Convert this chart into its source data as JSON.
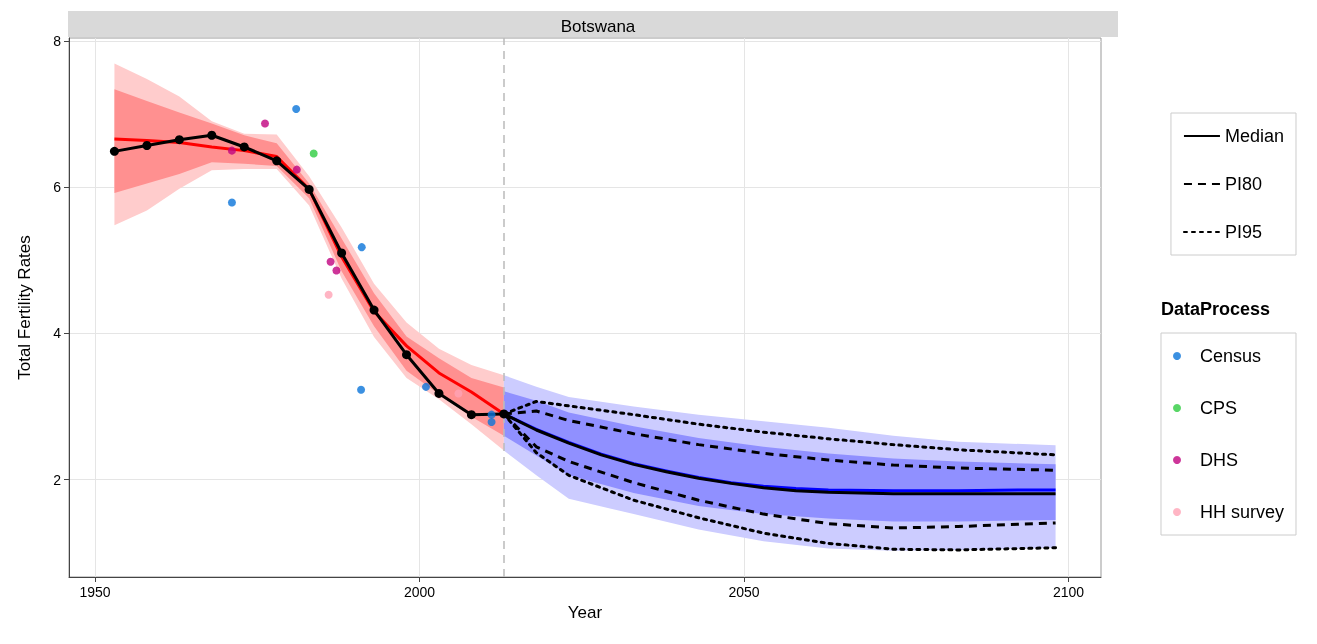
{
  "chart_data": {
    "type": "line",
    "title": "Botswana",
    "xlabel": "Year",
    "ylabel": "Total Fertility Rates",
    "legend_title": "DataProcess",
    "xlim": [
      1946,
      2105
    ],
    "xticks": [
      1950,
      2000,
      2050,
      2100
    ],
    "ylim": [
      0.67,
      8.04
    ],
    "yticks": [
      2,
      4,
      6,
      8
    ],
    "grid": true,
    "legend": "right",
    "marker": "none",
    "line_style": "solid",
    "ref_lines": [
      {
        "axis": "x",
        "value": 2013,
        "color": "#bbbbbb",
        "line_style": "dashed"
      }
    ],
    "series": [
      {
        "color": "#ffcccc",
        "x": [
          1953,
          1958,
          1963,
          1968,
          1973,
          1978,
          1983,
          1988,
          1993,
          1998,
          2003,
          2008,
          2013
        ],
        "values": [
          null,
          null,
          null,
          null,
          null,
          null,
          null,
          null,
          null,
          null,
          null,
          null,
          null
        ],
        "lower": [
          5.48,
          5.68,
          5.98,
          6.23,
          6.25,
          6.25,
          5.75,
          4.75,
          3.95,
          3.39,
          3.1,
          2.76,
          2.4
        ],
        "upper": [
          7.69,
          7.48,
          7.24,
          6.9,
          6.73,
          6.72,
          6.15,
          5.45,
          4.68,
          4.15,
          3.79,
          3.57,
          3.43
        ]
      },
      {
        "color": "#ff9090",
        "x": [
          1953,
          1958,
          1963,
          1968,
          1973,
          1978,
          1983,
          1988,
          1993,
          1998,
          2003,
          2008,
          2013
        ],
        "values": [
          null,
          null,
          null,
          null,
          null,
          null,
          null,
          null,
          null,
          null,
          null,
          null,
          null
        ],
        "lower": [
          5.92,
          6.05,
          6.18,
          6.34,
          6.32,
          6.29,
          5.85,
          4.85,
          4.1,
          3.49,
          3.17,
          2.86,
          2.6
        ],
        "upper": [
          7.34,
          7.18,
          7.02,
          6.87,
          6.71,
          6.6,
          6.05,
          5.3,
          4.55,
          3.96,
          3.66,
          3.39,
          3.26
        ]
      },
      {
        "color": "#ccccff",
        "x": [
          2013,
          2018,
          2023,
          2033,
          2043,
          2053,
          2063,
          2073,
          2083,
          2098
        ],
        "values": [
          null,
          null,
          null,
          null,
          null,
          null,
          null,
          null,
          null,
          null
        ],
        "lower": [
          2.4,
          2.06,
          1.74,
          1.53,
          1.32,
          1.16,
          1.06,
          1.03,
          1.04,
          1.07
        ],
        "upper": [
          3.43,
          3.27,
          3.13,
          3.0,
          2.89,
          2.8,
          2.71,
          2.6,
          2.52,
          2.47
        ]
      },
      {
        "color": "#9090ff",
        "x": [
          2013,
          2018,
          2023,
          2033,
          2043,
          2053,
          2063,
          2073,
          2083,
          2098
        ],
        "values": [
          null,
          null,
          null,
          null,
          null,
          null,
          null,
          null,
          null,
          null
        ],
        "lower": [
          2.6,
          2.33,
          2.06,
          1.82,
          1.64,
          1.53,
          1.47,
          1.43,
          1.43,
          1.45
        ],
        "upper": [
          3.21,
          3.08,
          2.92,
          2.73,
          2.57,
          2.45,
          2.36,
          2.29,
          2.25,
          2.21
        ]
      },
      {
        "color": "#ff0000",
        "x": [
          1953,
          1958,
          1963,
          1968,
          1973,
          1978,
          1983,
          1988,
          1993,
          1998,
          2003,
          2008,
          2013
        ],
        "values": [
          6.66,
          6.64,
          6.61,
          6.55,
          6.5,
          6.42,
          5.97,
          5.05,
          4.3,
          3.83,
          3.46,
          3.2,
          2.9
        ]
      },
      {
        "color": "#0000ff",
        "x": [
          2013,
          2018,
          2023,
          2028,
          2033,
          2038,
          2043,
          2048,
          2053,
          2058,
          2063,
          2073,
          2083,
          2093,
          2098
        ],
        "values": [
          2.9,
          2.69,
          2.51,
          2.35,
          2.22,
          2.12,
          2.03,
          1.96,
          1.91,
          1.88,
          1.86,
          1.85,
          1.85,
          1.86,
          1.86
        ]
      },
      {
        "type": "scatter",
        "name": "Census",
        "marker": "circle",
        "color": "#0a74da",
        "x": [
          1971.1,
          1981,
          1991.1,
          1991,
          2001,
          2011.1,
          2011.1
        ],
        "values": [
          5.79,
          7.07,
          5.18,
          3.23,
          3.27,
          2.89,
          2.79
        ]
      },
      {
        "type": "scatter",
        "name": "CPS",
        "marker": "circle",
        "color": "#2ecc40",
        "x": [
          1983.7
        ],
        "values": [
          6.46
        ]
      },
      {
        "type": "scatter",
        "name": "DHS",
        "marker": "circle",
        "color": "#c0037f",
        "x": [
          1971.1,
          1976.2,
          1981.1,
          1986.3,
          1987.2
        ],
        "values": [
          6.5,
          6.87,
          6.24,
          4.98,
          4.86
        ]
      },
      {
        "type": "scatter",
        "name": "HH survey",
        "marker": "circle",
        "color": "#ffa3b5",
        "x": [
          1986,
          2006
        ],
        "values": [
          4.53,
          3.18
        ]
      },
      {
        "color": "#000000",
        "marker": "circle",
        "x": [
          1953,
          1958,
          1963,
          1968,
          1973,
          1978,
          1983,
          1988,
          1993,
          1998,
          2003,
          2008,
          2013
        ],
        "values": [
          6.49,
          6.57,
          6.65,
          6.71,
          6.55,
          6.36,
          5.97,
          5.1,
          4.32,
          3.71,
          3.18,
          2.89,
          2.9
        ]
      },
      {
        "name": "Median",
        "color": "#000000",
        "x": [
          2013,
          2018,
          2023,
          2028,
          2033,
          2038,
          2043,
          2048,
          2053,
          2058,
          2063,
          2073,
          2083,
          2093,
          2098
        ],
        "values": [
          2.9,
          2.68,
          2.5,
          2.34,
          2.21,
          2.11,
          2.02,
          1.95,
          1.89,
          1.85,
          1.83,
          1.81,
          1.81,
          1.81,
          1.81
        ]
      },
      {
        "name": "PI80",
        "color": "#000000",
        "line_style": "dashed",
        "x": [
          2013,
          2018,
          2023,
          2033,
          2043,
          2053,
          2063,
          2073,
          2083,
          2098
        ],
        "values": [
          2.9,
          2.94,
          2.81,
          2.63,
          2.48,
          2.36,
          2.27,
          2.2,
          2.16,
          2.13
        ]
      },
      {
        "color": "#000000",
        "line_style": "dashed",
        "x": [
          2013,
          2018,
          2023,
          2033,
          2043,
          2053,
          2063,
          2073,
          2083,
          2098
        ],
        "values": [
          2.9,
          2.45,
          2.25,
          1.96,
          1.72,
          1.53,
          1.4,
          1.34,
          1.36,
          1.41
        ]
      },
      {
        "name": "PI95",
        "color": "#000000",
        "line_style": "dotted",
        "x": [
          2013,
          2018,
          2023,
          2033,
          2043,
          2053,
          2063,
          2073,
          2083,
          2098
        ],
        "values": [
          2.9,
          3.07,
          3.01,
          2.89,
          2.76,
          2.65,
          2.56,
          2.48,
          2.41,
          2.34
        ]
      },
      {
        "color": "#000000",
        "line_style": "dotted",
        "x": [
          2013,
          2018,
          2023,
          2033,
          2043,
          2053,
          2063,
          2073,
          2083,
          2098
        ],
        "values": [
          2.9,
          2.37,
          2.06,
          1.72,
          1.48,
          1.27,
          1.13,
          1.05,
          1.04,
          1.07
        ]
      }
    ]
  }
}
